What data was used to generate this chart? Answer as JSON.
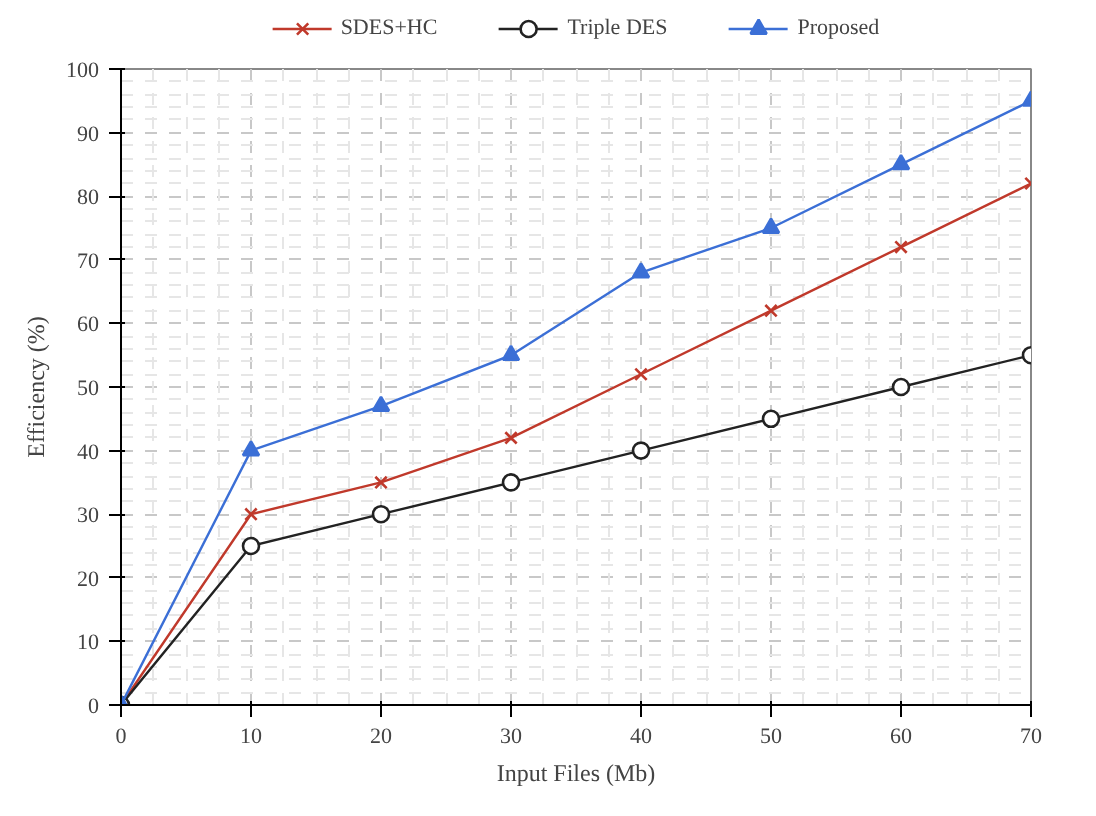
{
  "chart_data": {
    "type": "line",
    "xlabel": "Input Files (Mb)",
    "ylabel": "Efficiency (%)",
    "x": [
      0,
      10,
      20,
      30,
      40,
      50,
      60,
      70
    ],
    "series": [
      {
        "name": "SDES+HC",
        "color": "#c0392b",
        "marker": "x",
        "values": [
          0,
          30,
          35,
          42,
          52,
          62,
          72,
          82
        ]
      },
      {
        "name": "Triple DES",
        "color": "#222222",
        "marker": "circle",
        "values": [
          0,
          25,
          30,
          35,
          40,
          45,
          50,
          55
        ]
      },
      {
        "name": "Proposed",
        "color": "#3b6fd6",
        "marker": "triangle",
        "values": [
          0,
          40,
          47,
          55,
          68,
          75,
          85,
          95
        ]
      }
    ],
    "xlim": [
      0,
      70
    ],
    "ylim": [
      0,
      100
    ],
    "xticks": [
      0,
      10,
      20,
      30,
      40,
      50,
      60,
      70
    ],
    "yticks": [
      0,
      10,
      20,
      30,
      40,
      50,
      60,
      70,
      80,
      90,
      100
    ],
    "grid": true,
    "legend": "top",
    "line_style": "solid"
  }
}
